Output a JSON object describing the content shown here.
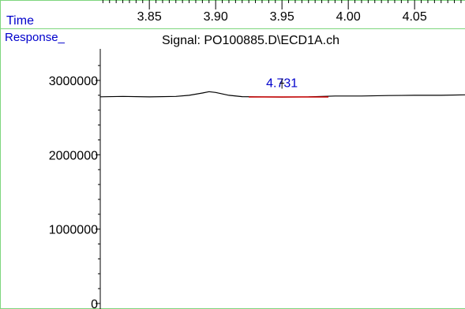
{
  "colors": {
    "frame": "#7ed67e",
    "label_blue": "#0000cc",
    "signal": "#000000",
    "integration": "#cc0000",
    "axis": "#000000"
  },
  "header": {
    "time_label": "Time",
    "response_label": "Response_",
    "signal_title": "Signal: PO100885.D\\ECD1A.ch"
  },
  "chart_data": {
    "type": "line",
    "title": "Signal: PO100885.D\\ECD1A.ch",
    "xlabel": "Time",
    "ylabel": "Response_",
    "xlim": [
      3.813,
      4.088
    ],
    "ylim": [
      0,
      3300000
    ],
    "x_ticks": [
      "3.85",
      "3.90",
      "3.95",
      "4.00",
      "4.05"
    ],
    "y_ticks": [
      "0",
      "1000000",
      "2000000",
      "3000000"
    ],
    "grid": false,
    "series": [
      {
        "x": [
          3.813,
          3.83,
          3.85,
          3.87,
          3.88,
          3.89,
          3.895,
          3.9,
          3.91,
          3.92,
          3.93,
          3.95,
          3.97,
          3.99,
          4.01,
          4.03,
          4.05,
          4.07,
          4.088
        ],
        "y": [
          2780000,
          2785000,
          2778000,
          2785000,
          2800000,
          2830000,
          2848000,
          2838000,
          2800000,
          2782000,
          2780000,
          2776000,
          2778000,
          2790000,
          2790000,
          2796000,
          2800000,
          2800000,
          2806000
        ]
      }
    ],
    "integration": {
      "x_start": 3.925,
      "x_end": 3.985,
      "y": 2778000
    },
    "annotations": [
      {
        "text": "4.731",
        "x": 3.95,
        "y": 2910000
      }
    ]
  }
}
